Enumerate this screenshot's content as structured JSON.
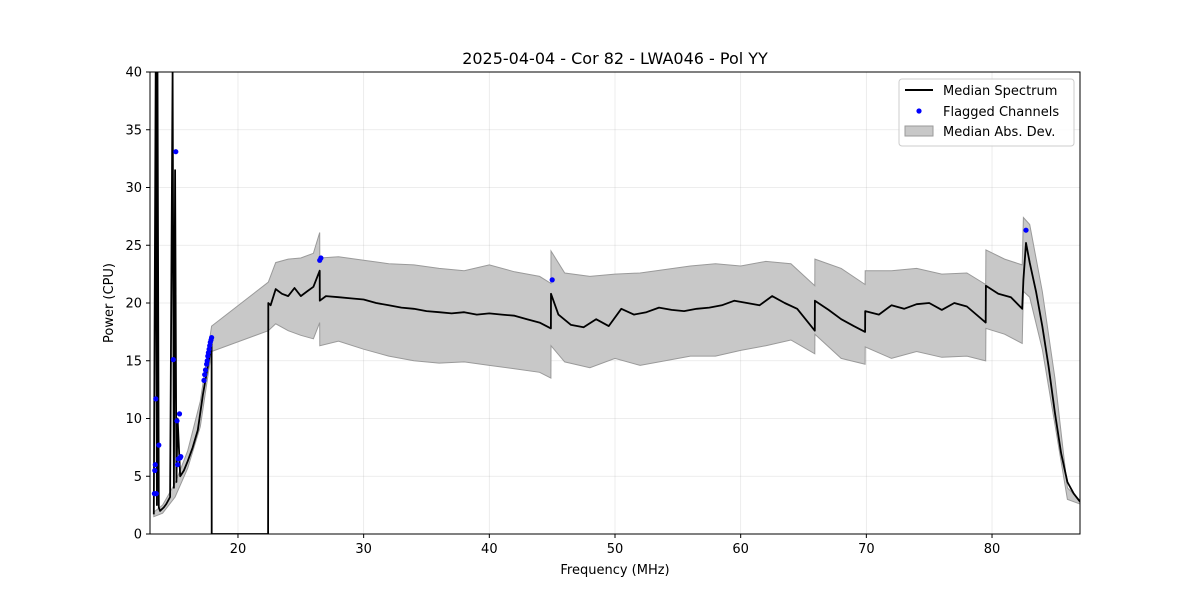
{
  "chart_data": {
    "type": "line",
    "title": "2025-04-04 - Cor 82 - LWA046 - Pol YY",
    "xlabel": "Frequency (MHz)",
    "ylabel": "Power (CPU)",
    "xlim": [
      13,
      87
    ],
    "ylim": [
      0,
      40
    ],
    "xticks": [
      20,
      30,
      40,
      50,
      60,
      70,
      80
    ],
    "yticks": [
      0,
      5,
      10,
      15,
      20,
      25,
      30,
      35,
      40
    ],
    "grid": true,
    "legend_position": "top-right",
    "colors": {
      "median": "#000000",
      "flagged": "#0000ff",
      "band_fill": "#c8c8c8",
      "band_edge": "#9a9a9a"
    },
    "legend": [
      {
        "label": "Median Spectrum",
        "kind": "line"
      },
      {
        "label": "Flagged Channels",
        "kind": "marker"
      },
      {
        "label": "Median Abs. Dev.",
        "kind": "patch"
      }
    ],
    "series": [
      {
        "name": "Median Spectrum",
        "x": [
          13.3,
          13.45,
          13.55,
          13.6,
          13.7,
          13.8,
          13.9,
          14.1,
          14.3,
          14.6,
          14.8,
          14.9,
          15.0,
          15.1,
          15.2,
          15.4,
          15.7,
          16.0,
          16.4,
          16.8,
          17.2,
          17.6,
          17.9,
          17.91,
          22.4,
          22.41,
          22.6,
          23.0,
          23.5,
          24.0,
          24.5,
          25.0,
          25.5,
          26.0,
          26.5,
          26.51,
          27.0,
          28.0,
          29.0,
          30.0,
          31.0,
          32.0,
          33.0,
          34.0,
          35.0,
          36.0,
          37.0,
          38.0,
          39.0,
          40.0,
          41.0,
          42.0,
          43.0,
          44.0,
          44.9,
          44.91,
          45.5,
          46.5,
          47.5,
          48.5,
          49.5,
          50.5,
          51.5,
          52.5,
          53.5,
          54.5,
          55.5,
          56.5,
          57.5,
          58.5,
          59.5,
          60.5,
          61.5,
          62.5,
          63.5,
          64.5,
          65.9,
          65.91,
          67.0,
          68.0,
          69.0,
          69.9,
          69.91,
          71.0,
          72.0,
          73.0,
          74.0,
          75.0,
          76.0,
          77.0,
          78.0,
          79.5,
          79.51,
          80.5,
          81.5,
          82.4,
          82.5,
          82.7,
          83.0,
          83.5,
          84.0,
          84.5,
          85.0,
          85.5,
          86.0,
          86.5,
          87.0
        ],
        "values": [
          1.7,
          40.0,
          2.5,
          40.0,
          2.3,
          2.0,
          2.1,
          2.3,
          2.6,
          3.2,
          40.0,
          4.0,
          31.5,
          4.5,
          10.0,
          5.0,
          5.5,
          6.3,
          7.5,
          9.0,
          12.0,
          14.5,
          16.5,
          0.0,
          0.0,
          20.0,
          19.8,
          21.2,
          20.8,
          20.6,
          21.3,
          20.6,
          21.0,
          21.4,
          22.8,
          20.2,
          20.6,
          20.5,
          20.4,
          20.3,
          20.0,
          19.8,
          19.6,
          19.5,
          19.3,
          19.2,
          19.1,
          19.2,
          19.0,
          19.1,
          19.0,
          18.9,
          18.6,
          18.3,
          17.8,
          20.8,
          19.0,
          18.1,
          17.9,
          18.6,
          18.0,
          19.5,
          19.0,
          19.2,
          19.6,
          19.4,
          19.3,
          19.5,
          19.6,
          19.8,
          20.2,
          20.0,
          19.8,
          20.6,
          20.0,
          19.5,
          17.6,
          20.2,
          19.4,
          18.6,
          18.0,
          17.5,
          19.3,
          19.0,
          19.8,
          19.5,
          19.9,
          20.0,
          19.4,
          20.0,
          19.7,
          18.3,
          21.5,
          20.8,
          20.5,
          19.5,
          22.0,
          25.2,
          23.5,
          21.0,
          18.0,
          14.5,
          10.5,
          7.0,
          4.5,
          3.5,
          2.8
        ]
      },
      {
        "name": "Median Abs. Dev.",
        "x": [
          13.3,
          14.0,
          15.0,
          16.0,
          17.0,
          17.9,
          22.41,
          23.0,
          24.0,
          25.0,
          26.0,
          26.5,
          26.51,
          28.0,
          30.0,
          32.0,
          34.0,
          36.0,
          38.0,
          40.0,
          42.0,
          44.0,
          44.9,
          44.91,
          46.0,
          48.0,
          50.0,
          52.0,
          54.0,
          56.0,
          58.0,
          60.0,
          62.0,
          64.0,
          65.9,
          65.91,
          68.0,
          69.9,
          69.91,
          72.0,
          74.0,
          76.0,
          78.0,
          79.5,
          79.51,
          81.0,
          82.4,
          82.5,
          83.0,
          84.0,
          85.0,
          86.0,
          87.0
        ],
        "upper": [
          1.9,
          2.5,
          4.4,
          7.2,
          11.5,
          18.0,
          21.8,
          23.5,
          23.8,
          23.9,
          24.3,
          26.1,
          23.9,
          24.0,
          23.7,
          23.4,
          23.3,
          23.0,
          22.8,
          23.3,
          22.7,
          22.3,
          21.7,
          24.5,
          22.6,
          22.3,
          22.5,
          22.6,
          22.9,
          23.2,
          23.4,
          23.2,
          23.6,
          23.4,
          21.5,
          23.8,
          23.0,
          21.6,
          22.8,
          22.8,
          23.0,
          22.5,
          22.6,
          21.6,
          24.6,
          23.8,
          23.3,
          27.4,
          26.8,
          21.0,
          13.5,
          4.0,
          2.9
        ],
        "lower": [
          1.5,
          1.8,
          3.2,
          5.7,
          9.3,
          15.8,
          17.6,
          18.2,
          17.6,
          17.2,
          16.9,
          18.3,
          16.3,
          16.7,
          16.0,
          15.4,
          15.0,
          14.8,
          14.9,
          14.6,
          14.3,
          14.0,
          13.5,
          16.3,
          14.9,
          14.4,
          15.2,
          14.6,
          15.0,
          15.4,
          15.4,
          15.9,
          16.3,
          16.8,
          15.6,
          17.3,
          15.2,
          14.7,
          16.2,
          15.2,
          15.8,
          15.3,
          15.4,
          15.0,
          17.8,
          17.3,
          16.5,
          21.0,
          20.5,
          16.0,
          9.5,
          3.0,
          2.6
        ]
      },
      {
        "name": "Flagged Channels",
        "x": [
          13.35,
          13.38,
          13.42,
          13.46,
          13.5,
          13.7,
          14.85,
          15.05,
          15.15,
          15.2,
          15.25,
          15.35,
          15.4,
          15.45,
          17.3,
          17.35,
          17.42,
          17.5,
          17.55,
          17.6,
          17.65,
          17.7,
          17.75,
          17.8,
          17.85,
          17.9,
          26.5,
          26.6,
          45.0,
          82.7
        ],
        "values": [
          3.5,
          5.5,
          6.0,
          11.7,
          3.5,
          7.7,
          15.1,
          33.1,
          9.8,
          6.0,
          6.5,
          10.4,
          6.6,
          6.7,
          13.3,
          13.8,
          14.2,
          14.7,
          15.0,
          15.4,
          15.7,
          16.0,
          16.3,
          16.6,
          16.8,
          17.0,
          23.7,
          23.9,
          22.0,
          26.3
        ]
      }
    ]
  }
}
